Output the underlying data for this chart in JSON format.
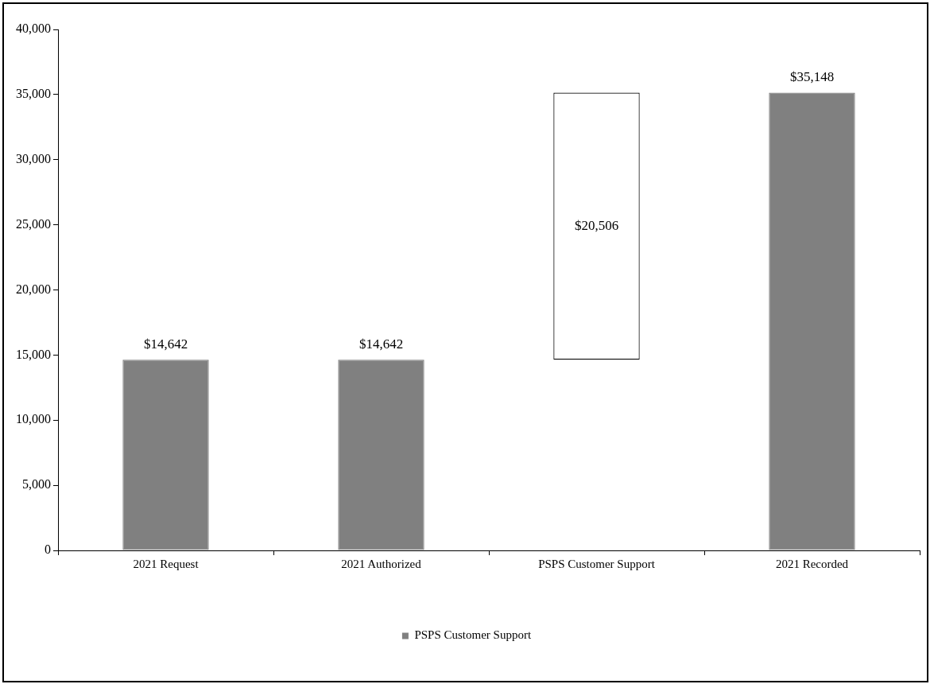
{
  "chart_data": {
    "type": "bar",
    "categories": [
      "2021 Request",
      "2021 Authorized",
      "PSPS Customer Support",
      "2021 Recorded"
    ],
    "series": [
      {
        "name": "PSPS Customer Support",
        "color": "#808080",
        "colors": [
          "#808080",
          "#808080",
          "#ffffff",
          "#808080"
        ],
        "values": [
          14642,
          14642,
          20506,
          35148
        ],
        "base": [
          0,
          0,
          14642,
          0
        ],
        "value_labels": [
          "$14,642",
          "$14,642",
          "$20,506",
          "$35,148"
        ]
      }
    ],
    "ylim": [
      0,
      40000
    ],
    "yticks": [
      {
        "value": 0,
        "label": "0"
      },
      {
        "value": 5000,
        "label": "5,000"
      },
      {
        "value": 10000,
        "label": "10,000"
      },
      {
        "value": 15000,
        "label": "15,000"
      },
      {
        "value": 20000,
        "label": "20,000"
      },
      {
        "value": 25000,
        "label": "25,000"
      },
      {
        "value": 30000,
        "label": "30,000"
      },
      {
        "value": 35000,
        "label": "35,000"
      },
      {
        "value": 40000,
        "label": "40,000"
      }
    ],
    "grid": false,
    "legend": "bottom"
  }
}
